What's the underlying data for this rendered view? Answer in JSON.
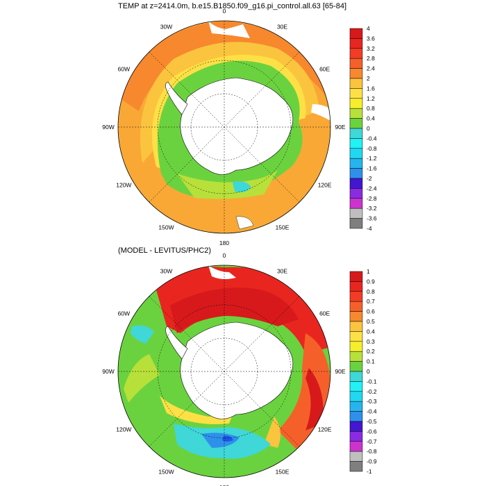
{
  "panel1": {
    "title": "TEMP at z=2414.0m, b.e15.B1850.f09_g16.pi_control.all.63 [65-84]",
    "colorbar_labels": [
      "4",
      "3.6",
      "3.2",
      "2.8",
      "2.4",
      "2",
      "1.6",
      "1.2",
      "0.8",
      "0.4",
      "0",
      "-0.4",
      "-0.8",
      "-1.2",
      "-1.6",
      "-2",
      "-2.4",
      "-2.8",
      "-3.2",
      "-3.6",
      "-4"
    ]
  },
  "panel2": {
    "title": "(MODEL - LEVITUS/PHC2)",
    "colorbar_labels": [
      "1",
      "0.9",
      "0.8",
      "0.7",
      "0.6",
      "0.5",
      "0.4",
      "0.3",
      "0.2",
      "0.1",
      "0",
      "-0.1",
      "-0.2",
      "-0.3",
      "-0.4",
      "-0.5",
      "-0.6",
      "-0.7",
      "-0.8",
      "-0.9",
      "-1"
    ]
  },
  "longitude_labels": [
    "0",
    "30E",
    "60E",
    "90E",
    "120E",
    "150E",
    "180",
    "150W",
    "120W",
    "90W",
    "60W",
    "30W"
  ],
  "palette": [
    "#d7191c",
    "#e8261f",
    "#f23c25",
    "#f5602a",
    "#f7882e",
    "#f9a836",
    "#fbc43e",
    "#fde046",
    "#f6ee2c",
    "#b8e03a",
    "#6bd23f",
    "#3fd7d7",
    "#22f1f5",
    "#20d8f0",
    "#26b4ee",
    "#2e90ea",
    "#1d54e8",
    "#4316d0",
    "#8a2be2",
    "#cc33cc",
    "#bfbfbf",
    "#7f7f7f"
  ],
  "colors": {
    "land": "#ffffff",
    "coast": "#000000",
    "background": "#ffffff"
  }
}
